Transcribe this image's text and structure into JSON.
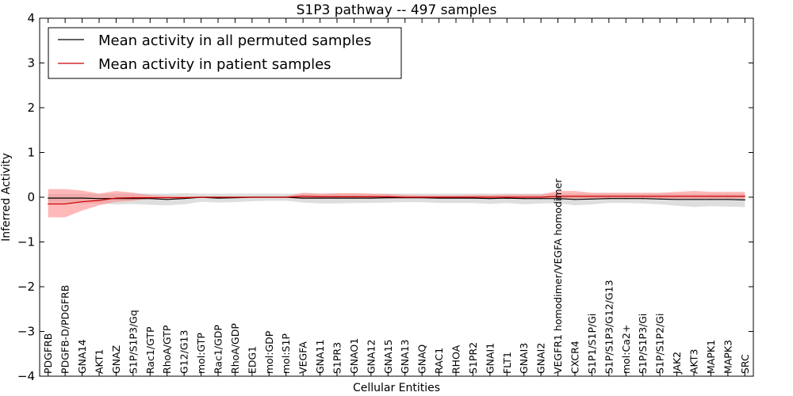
{
  "chart_data": {
    "type": "line",
    "title": "S1P3 pathway -- 497 samples",
    "xlabel": "Cellular Entities",
    "ylabel": "Inferred Activity",
    "ylim": [
      -4,
      4
    ],
    "yticks": [
      4,
      3,
      2,
      1,
      0,
      -1,
      -2,
      -3,
      -4
    ],
    "ytick_labels": [
      "4",
      "3",
      "2",
      "1",
      "0",
      "−1",
      "−2",
      "−3",
      "−4"
    ],
    "categories": [
      "PDGFRB",
      "PDGFB-D/PDGFRB",
      "GNA14",
      "AKT1",
      "GNAZ",
      "S1P/S1P3/Gq",
      "Rac1/GTP",
      "RhoA/GTP",
      "G12/G13",
      "mol:GTP",
      "Rac1/GDP",
      "RhoA/GDP",
      "EDG1",
      "mol:GDP",
      "mol:S1P",
      "VEGFA",
      "GNA11",
      "S1PR3",
      "GNAO1",
      "GNA12",
      "GNA15",
      "GNA13",
      "GNAQ",
      "RAC1",
      "RHOA",
      "S1PR2",
      "GNAI1",
      "FLT1",
      "GNAI3",
      "GNAI2",
      "VEGFR1 homodimer/VEGFA homodimer",
      "CXCR4",
      "S1P1/S1P/Gi",
      "S1P/S1P3/G12/G13",
      "mol:Ca2+",
      "S1P/S1P3/Gi",
      "S1P/S1P2/Gi",
      "JAK2",
      "AKT3",
      "MAPK1",
      "MAPK3",
      "SRC"
    ],
    "legend": {
      "location": "top-left"
    },
    "series": [
      {
        "name": "Mean activity in all permuted samples",
        "color": "#000000",
        "band_color": "#c8c8c8",
        "values": [
          -0.02,
          -0.02,
          -0.02,
          -0.03,
          -0.03,
          -0.03,
          -0.03,
          -0.05,
          -0.03,
          0.0,
          -0.02,
          -0.01,
          0.0,
          0.0,
          0.0,
          -0.02,
          -0.02,
          -0.02,
          -0.02,
          -0.02,
          -0.01,
          -0.01,
          -0.01,
          -0.02,
          -0.02,
          -0.02,
          -0.03,
          -0.02,
          -0.03,
          -0.03,
          -0.03,
          -0.05,
          -0.04,
          -0.03,
          -0.03,
          -0.03,
          -0.04,
          -0.05,
          -0.05,
          -0.05,
          -0.05,
          -0.06
        ],
        "lower": [
          -0.12,
          -0.12,
          -0.14,
          -0.14,
          -0.16,
          -0.15,
          -0.17,
          -0.18,
          -0.16,
          -0.1,
          -0.12,
          -0.11,
          -0.09,
          -0.08,
          -0.08,
          -0.12,
          -0.14,
          -0.14,
          -0.13,
          -0.13,
          -0.12,
          -0.11,
          -0.11,
          -0.13,
          -0.13,
          -0.13,
          -0.15,
          -0.13,
          -0.16,
          -0.14,
          -0.13,
          -0.18,
          -0.16,
          -0.13,
          -0.13,
          -0.14,
          -0.16,
          -0.19,
          -0.22,
          -0.2,
          -0.21,
          -0.22
        ],
        "upper": [
          0.07,
          0.07,
          0.08,
          0.07,
          0.08,
          0.08,
          0.08,
          0.08,
          0.09,
          0.08,
          0.08,
          0.08,
          0.08,
          0.08,
          0.08,
          0.08,
          0.08,
          0.08,
          0.08,
          0.08,
          0.08,
          0.08,
          0.08,
          0.08,
          0.08,
          0.08,
          0.08,
          0.08,
          0.08,
          0.08,
          0.08,
          0.08,
          0.08,
          0.08,
          0.08,
          0.08,
          0.08,
          0.08,
          0.08,
          0.08,
          0.08,
          0.08
        ]
      },
      {
        "name": "Mean activity in patient samples",
        "color": "#cc0000",
        "band_color": "#ff8080",
        "values": [
          -0.15,
          -0.15,
          -0.1,
          -0.07,
          -0.02,
          -0.01,
          -0.01,
          -0.01,
          -0.01,
          0.0,
          0.0,
          0.0,
          0.0,
          0.0,
          0.0,
          0.02,
          0.01,
          0.01,
          0.01,
          0.01,
          0.01,
          0.0,
          0.0,
          0.0,
          0.0,
          0.0,
          0.0,
          0.0,
          0.0,
          0.0,
          0.02,
          0.02,
          0.02,
          0.02,
          0.02,
          0.02,
          0.02,
          0.02,
          0.02,
          0.02,
          0.02,
          0.02
        ],
        "lower": [
          -0.45,
          -0.45,
          -0.3,
          -0.18,
          -0.1,
          -0.08,
          -0.03,
          -0.02,
          -0.02,
          -0.01,
          -0.01,
          -0.01,
          -0.01,
          -0.01,
          -0.01,
          -0.04,
          -0.03,
          -0.03,
          -0.03,
          -0.03,
          -0.03,
          -0.02,
          -0.02,
          -0.02,
          -0.02,
          -0.02,
          -0.02,
          -0.02,
          -0.02,
          -0.02,
          -0.03,
          -0.03,
          -0.03,
          -0.03,
          -0.03,
          -0.03,
          -0.03,
          -0.03,
          -0.03,
          -0.03,
          -0.03,
          -0.03
        ],
        "upper": [
          0.18,
          0.18,
          0.15,
          0.08,
          0.14,
          0.1,
          0.05,
          0.03,
          0.02,
          0.01,
          0.01,
          0.01,
          0.01,
          0.01,
          0.02,
          0.1,
          0.08,
          0.09,
          0.09,
          0.08,
          0.07,
          0.05,
          0.04,
          0.04,
          0.04,
          0.05,
          0.05,
          0.06,
          0.06,
          0.06,
          0.14,
          0.14,
          0.1,
          0.1,
          0.1,
          0.1,
          0.1,
          0.12,
          0.14,
          0.12,
          0.12,
          0.12
        ]
      }
    ]
  }
}
